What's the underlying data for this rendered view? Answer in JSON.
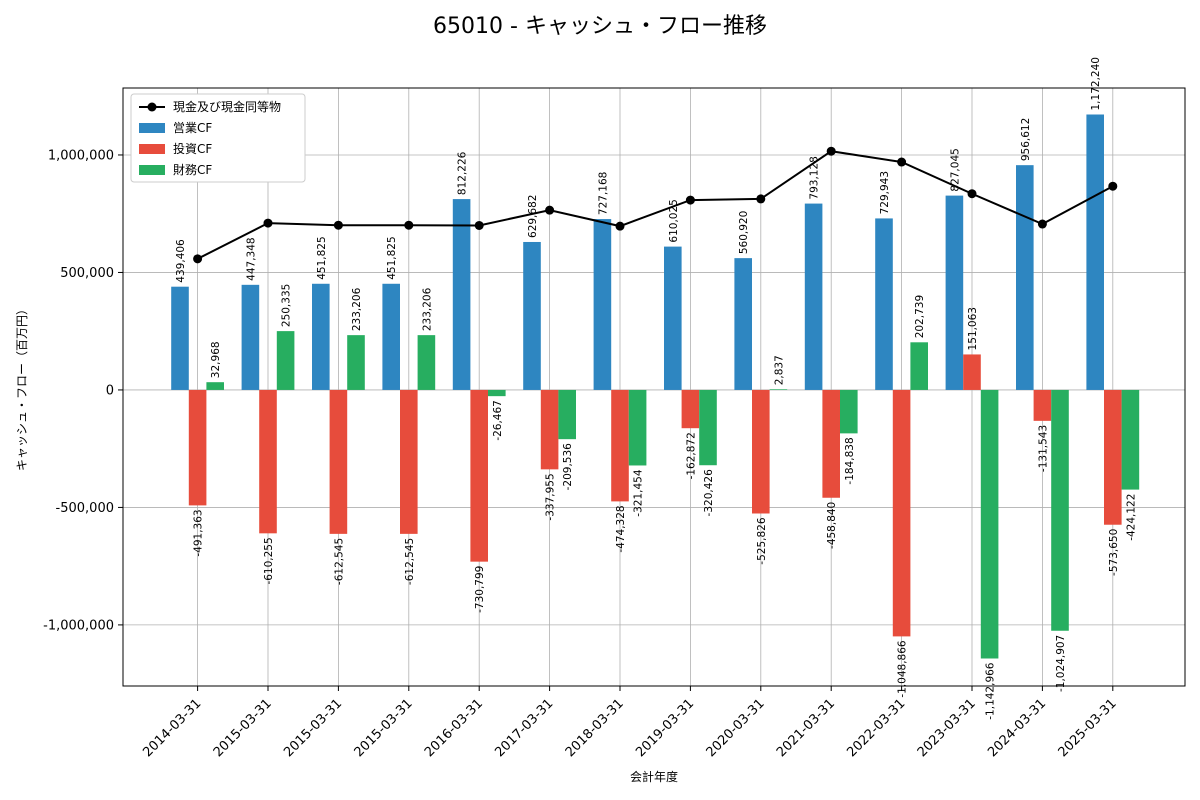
{
  "chart_data": {
    "type": "bar",
    "title": "65010 - キャッシュ・フロー推移",
    "xlabel": "会計年度",
    "ylabel": "キャッシュ・フロー（百万円）",
    "ylim": [
      -1260000,
      1285000
    ],
    "yticks": [
      -1000000,
      -500000,
      0,
      500000,
      1000000
    ],
    "ytick_labels": [
      "-1,000,000",
      "-500,000",
      "0",
      "500,000",
      "1,000,000"
    ],
    "grid": true,
    "legend_position": "top-left",
    "categories": [
      "2014-03-31",
      "2015-03-31",
      "2015-03-31",
      "2015-03-31",
      "2016-03-31",
      "2017-03-31",
      "2018-03-31",
      "2019-03-31",
      "2020-03-31",
      "2021-03-31",
      "2022-03-31",
      "2023-03-31",
      "2024-03-31",
      "2025-03-31"
    ],
    "series": [
      {
        "name": "営業CF",
        "kind": "bar",
        "color": "#2e86c1",
        "values": [
          439406,
          447348,
          451825,
          451825,
          812226,
          629682,
          727168,
          610025,
          560920,
          793128,
          729943,
          827045,
          956612,
          1172240
        ],
        "labels": [
          "439,406",
          "447,348",
          "451,825",
          "451,825",
          "812,226",
          "629,682",
          "727,168",
          "610,025",
          "560,920",
          "793,128",
          "729,943",
          "827,045",
          "956,612",
          "1,172,240"
        ]
      },
      {
        "name": "投資CF",
        "kind": "bar",
        "color": "#e74c3c",
        "values": [
          -491363,
          -610255,
          -612545,
          -612545,
          -730799,
          -337955,
          -474328,
          -162872,
          -525826,
          -458840,
          -1048866,
          151063,
          -131543,
          -573650
        ],
        "labels": [
          "-491,363",
          "-610,255",
          "-612,545",
          "-612,545",
          "-730,799",
          "-337,955",
          "-474,328",
          "-162,872",
          "-525,826",
          "-458,840",
          "-1,048,866",
          "151,063",
          "-131,543",
          "-573,650"
        ]
      },
      {
        "name": "財務CF",
        "kind": "bar",
        "color": "#27ae60",
        "values": [
          32968,
          250335,
          233206,
          233206,
          -26467,
          -209536,
          -321454,
          -320426,
          2837,
          -184838,
          202739,
          -1142966,
          -1024907,
          -424122
        ],
        "labels": [
          "32,968",
          "250,335",
          "233,206",
          "233,206",
          "-26,467",
          "-209,536",
          "-321,454",
          "-320,426",
          "2,837",
          "-184,838",
          "202,739",
          "-1,142,966",
          "-1,024,907",
          "-424,122"
        ]
      },
      {
        "name": "現金及び現金同等物",
        "kind": "line",
        "color": "#000000",
        "values": [
          558000,
          710000,
          701000,
          701000,
          700000,
          765000,
          697000,
          808000,
          813000,
          1016000,
          970000,
          835000,
          706000,
          867000
        ]
      }
    ]
  }
}
